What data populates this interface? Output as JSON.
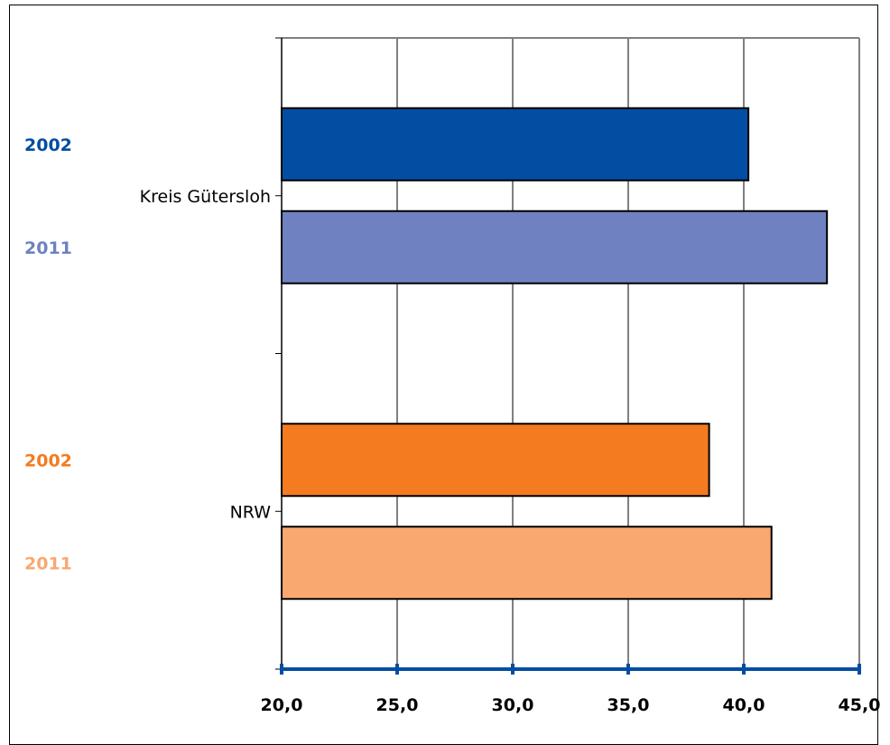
{
  "chart_data": {
    "type": "bar",
    "orientation": "horizontal",
    "categories": [
      "Kreis Gütersloh",
      "NRW"
    ],
    "groups": [
      {
        "category": "Kreis Gütersloh",
        "bars": [
          {
            "year": "2002",
            "value": 40.2,
            "color": "#034ea2",
            "label_color": "#034ea2"
          },
          {
            "year": "2011",
            "value": 43.6,
            "color": "#6f81c0",
            "label_color": "#6f81c0"
          }
        ]
      },
      {
        "category": "NRW",
        "bars": [
          {
            "year": "2002",
            "value": 38.5,
            "color": "#f47b20",
            "label_color": "#f47b20"
          },
          {
            "year": "2011",
            "value": 41.2,
            "color": "#f9a870",
            "label_color": "#f9a870"
          }
        ]
      }
    ],
    "xlim": [
      20,
      45
    ],
    "xticks": [
      "20,0",
      "25,0",
      "30,0",
      "35,0",
      "40,0",
      "45,0"
    ],
    "xtick_values": [
      20,
      25,
      30,
      35,
      40,
      45
    ],
    "grid": true,
    "axis_color": "#034ea2",
    "title": "",
    "xlabel": "",
    "ylabel": ""
  }
}
